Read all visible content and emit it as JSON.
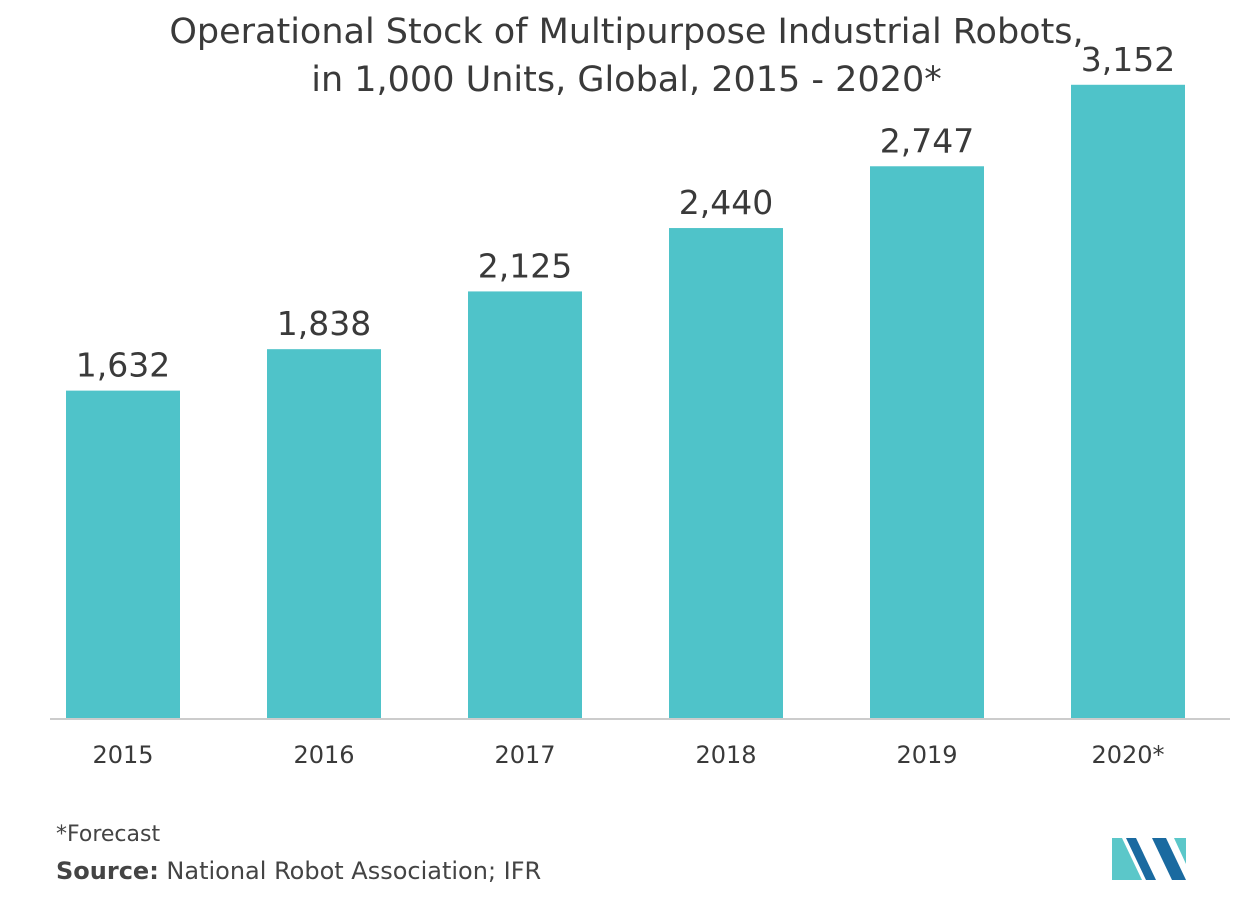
{
  "title_lines": [
    "Operational Stock of Multipurpose Industrial Robots,",
    "in 1,000 Units, Global, 2015 - 2020*"
  ],
  "chart_data": {
    "type": "bar",
    "title": "Operational Stock of Multipurpose Industrial Robots, in 1,000 Units, Global, 2015 - 2020*",
    "categories": [
      "2015",
      "2016",
      "2017",
      "2018",
      "2019",
      "2020*"
    ],
    "values": [
      1632,
      1838,
      2125,
      2440,
      2747,
      3152
    ],
    "value_labels": [
      "1,632",
      "1,838",
      "2,125",
      "2,440",
      "2,747",
      "3,152"
    ],
    "xlabel": "",
    "ylabel": "",
    "ylim": [
      0,
      3300
    ],
    "grid": false,
    "legend": "none",
    "bar_color": "#4fc3c9",
    "axis_color": "#cccccc"
  },
  "footnote": "*Forecast",
  "source": {
    "label": "Source:",
    "text": " National Robot Association; IFR"
  },
  "logo": {
    "icon": "mordor-intelligence-logo-icon",
    "colors": [
      "#1a6aa0",
      "#5bc7c9"
    ]
  }
}
